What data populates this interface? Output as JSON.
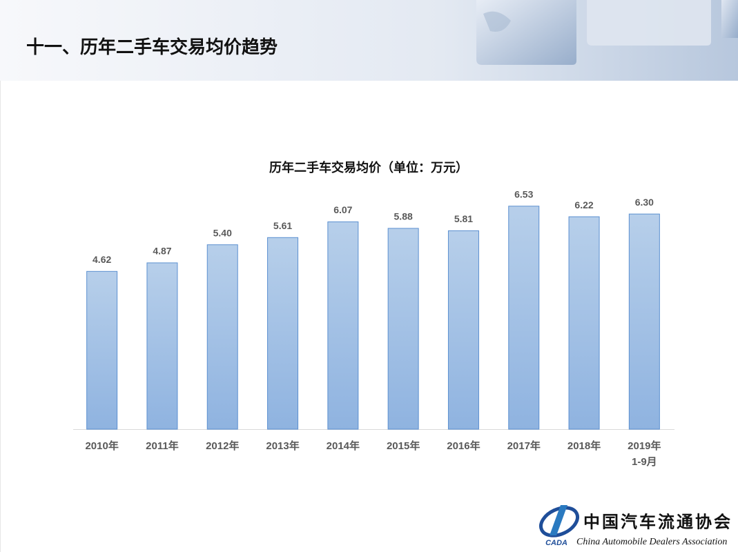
{
  "header": {
    "title": "十一、历年二手车交易均价趋势"
  },
  "chart_data": {
    "type": "bar",
    "title": "历年二手车交易均价（单位：万元）",
    "categories": [
      "2010年",
      "2011年",
      "2012年",
      "2013年",
      "2014年",
      "2015年",
      "2016年",
      "2017年",
      "2018年",
      "2019年\n1-9月"
    ],
    "values": [
      4.62,
      4.87,
      5.4,
      5.61,
      6.07,
      5.88,
      5.81,
      6.53,
      6.22,
      6.3
    ],
    "value_labels": [
      "4.62",
      "4.87",
      "5.40",
      "5.61",
      "6.07",
      "5.88",
      "5.81",
      "6.53",
      "6.22",
      "6.30"
    ],
    "color": "#9dbde5"
  },
  "footer": {
    "org_name": "中国汽车流通协会",
    "org_name_en": "China Automobile Dealers Association",
    "org_abbr": "CADA"
  }
}
